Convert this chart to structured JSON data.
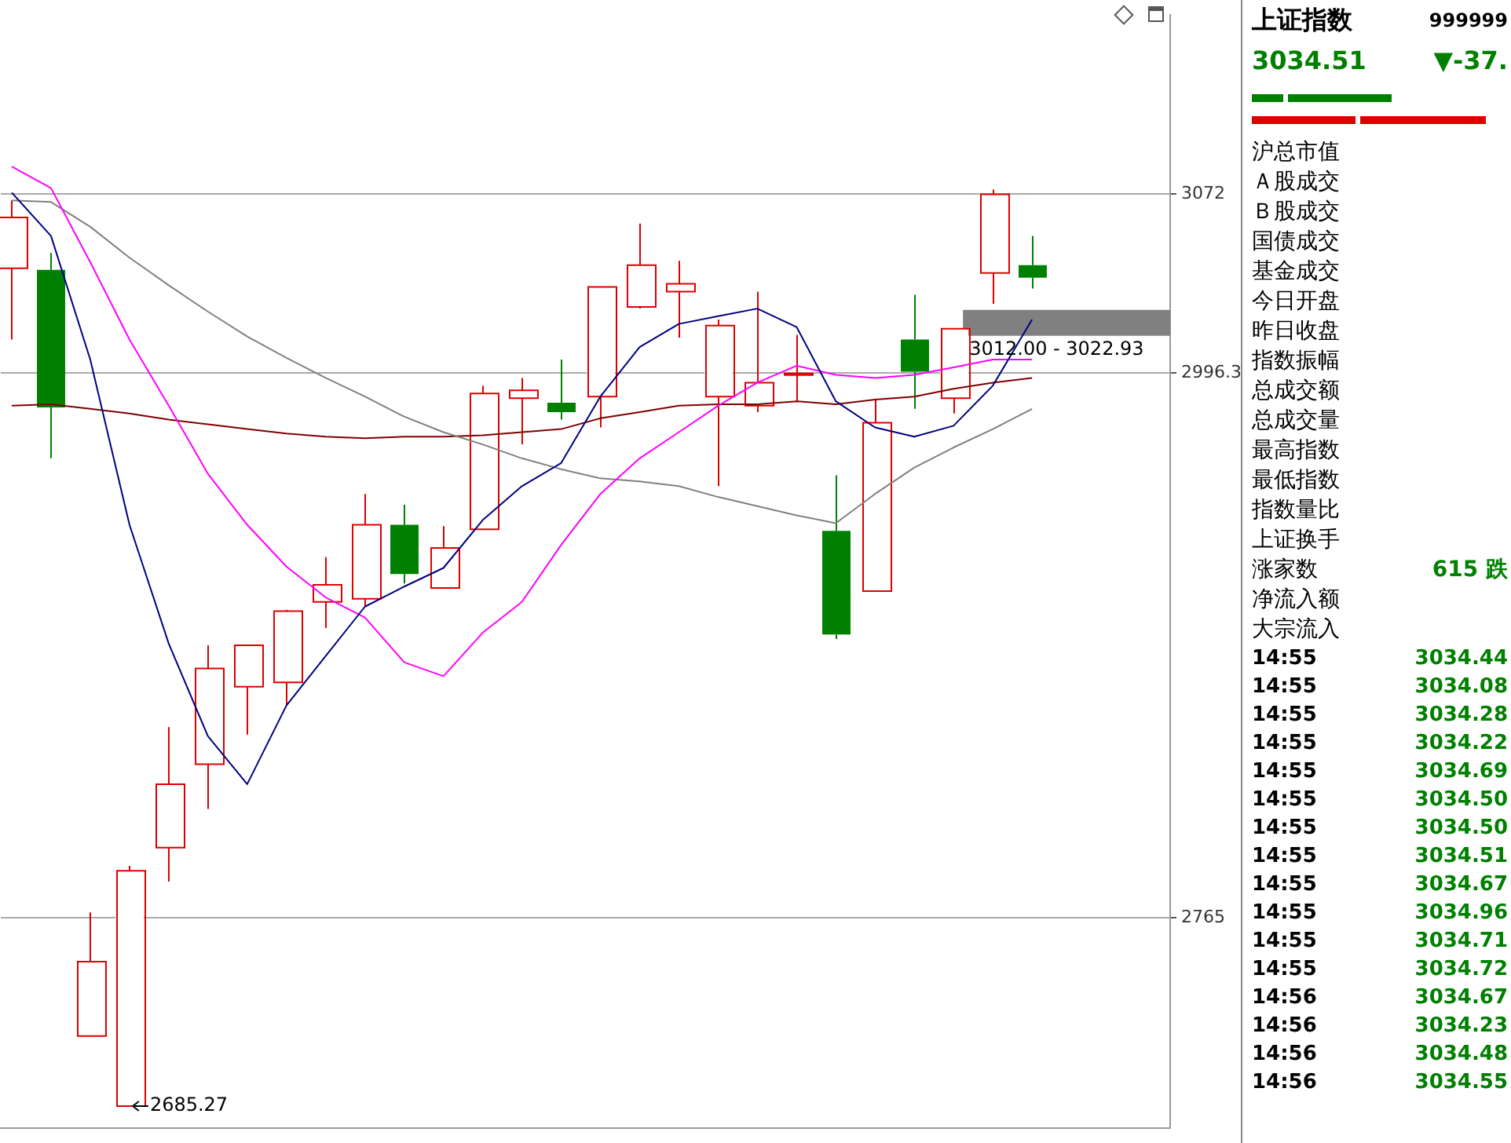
{
  "chart_data": {
    "type": "candlestick",
    "categories": [
      null,
      null,
      null,
      null,
      null,
      null,
      null,
      null,
      null,
      null,
      null,
      null,
      null,
      null,
      null,
      null,
      null,
      null,
      null,
      null,
      null,
      null,
      null,
      null,
      null,
      null,
      null
    ],
    "ohlc": [
      [
        3040.6,
        3069.4,
        3010.4,
        3062.2
      ],
      [
        3039.9,
        3047.1,
        2960.0,
        2981.6
      ],
      [
        2715.0,
        2767.4,
        2715.0,
        2746.5
      ],
      [
        2685.27,
        2787.1,
        2685.27,
        2785.1
      ],
      [
        2794.9,
        2846.0,
        2780.5,
        2821.8
      ],
      [
        2830.3,
        2880.7,
        2811.3,
        2870.9
      ],
      [
        2863.1,
        2880.7,
        2842.8,
        2880.7
      ],
      [
        2865.0,
        2895.8,
        2855.2,
        2895.2
      ],
      [
        2899.1,
        2918.1,
        2888.0,
        2906.3
      ],
      [
        2900.4,
        2944.9,
        2897.1,
        2931.8
      ],
      [
        2931.8,
        2940.3,
        2906.9,
        2910.9
      ],
      [
        2905.0,
        2931.2,
        2905.0,
        2922.0
      ],
      [
        2929.9,
        2990.8,
        2929.9,
        2987.5
      ],
      [
        2985.5,
        2994.1,
        2965.9,
        2988.8
      ],
      [
        2983.6,
        3001.9,
        2976.4,
        2979.6
      ],
      [
        2986.2,
        3032.7,
        2973.1,
        3032.7
      ],
      [
        3024.2,
        3059.6,
        3023.5,
        3041.9
      ],
      [
        3030.7,
        3043.8,
        3011.1,
        3034.0
      ],
      [
        2986.2,
        3018.9,
        2948.2,
        3016.3
      ],
      [
        2982.3,
        3030.7,
        2979.6,
        2992.1
      ],
      [
        2996.0,
        3012.4,
        2984.2,
        2996.0
      ],
      [
        2929.2,
        2952.8,
        2883.4,
        2885.3
      ],
      [
        2903.7,
        2984.9,
        2903.7,
        2975.1
      ],
      [
        3010.4,
        3029.4,
        2981.0,
        2996.7
      ],
      [
        2985.5,
        3015.0,
        2979.0,
        3015.0
      ],
      [
        3038.6,
        3074.0,
        3025.5,
        3072.0
      ],
      [
        3041.9,
        3054.3,
        3032.0,
        3036.6
      ]
    ],
    "series": [
      {
        "type": "line",
        "color": "#000080",
        "values": [
          3072.7,
          3054.3,
          3001.9,
          2931.8,
          2881.4,
          2842.1,
          2821.8,
          2855.2,
          2876.2,
          2897.1,
          2905.6,
          2913.5,
          2933.8,
          2948.2,
          2958.0,
          2986.2,
          3007.2,
          3017.0,
          3020.3,
          3023.5,
          3015.7,
          2984.2,
          2973.1,
          2969.2,
          2973.8,
          2990.8,
          3018.9
        ]
      },
      {
        "type": "line",
        "color": "#ff00ff",
        "values": [
          3083.8,
          3074.6,
          3043.2,
          3010.4,
          2982.3,
          2953.4,
          2931.8,
          2914.1,
          2901.0,
          2892.5,
          2873.5,
          2867.6,
          2886.0,
          2899.1,
          2923.3,
          2944.9,
          2960.0,
          2971.1,
          2982.3,
          2992.1,
          2999.3,
          2995.4,
          2994.1,
          2995.4,
          2998.6,
          3001.9,
          3001.9
        ]
      },
      {
        "type": "line",
        "color": "#808080",
        "values": [
          3069.4,
          3068.7,
          3058.2,
          3045.1,
          3033.4,
          3022.2,
          3011.7,
          3002.6,
          2994.1,
          2986.2,
          2977.7,
          2971.1,
          2965.9,
          2960.0,
          2955.4,
          2951.5,
          2950.2,
          2948.2,
          2943.6,
          2939.7,
          2935.8,
          2932.5,
          2944.9,
          2956.1,
          2964.6,
          2972.4,
          2981.0
        ]
      },
      {
        "type": "line",
        "color": "#800000",
        "values": [
          2982.3,
          2982.9,
          2981.0,
          2979.0,
          2976.4,
          2974.4,
          2972.4,
          2970.5,
          2969.2,
          2968.5,
          2969.2,
          2969.2,
          2969.8,
          2971.1,
          2972.4,
          2977.0,
          2979.6,
          2982.3,
          2982.9,
          2982.9,
          2984.2,
          2982.9,
          2984.9,
          2986.2,
          2989.5,
          2992.1,
          2994.1
        ]
      }
    ],
    "ylim": [
      2676,
      3148
    ],
    "yticks": [
      2765,
      {
        "value": 2996.3,
        "label": "2996.3"
      },
      3072
    ],
    "grid": "y",
    "tick_labels": "y",
    "legend": false,
    "bands": [
      {
        "axis": "y",
        "from": 3012,
        "to": 3022.93,
        "label": "3012.00 - 3022.93",
        "color": "#808080"
      }
    ],
    "annotations": [
      "上证指数 999999",
      "3034.51 ▼-37.",
      "沪总市值",
      "Ａ股成交",
      "Ｂ股成交",
      "国债成交",
      "基金成交",
      "今日开盘",
      "昨日收盘",
      "指数振幅",
      "总成交额",
      "总成交量",
      "最高指数",
      "最低指数",
      "指数量比",
      "上证换手",
      "涨家数 615 跌",
      "净流入额",
      "大宗流入",
      "14:55 3034.44",
      "14:55 3034.08",
      "14:55 3034.28",
      "14:55 3034.22",
      "14:55 3034.69",
      "14:55 3034.50",
      "14:55 3034.50",
      "14:55 3034.51",
      "14:55 3034.67",
      "14:55 3034.96",
      "14:55 3034.71",
      "14:55 3034.72",
      "14:56 3034.67",
      "14:56 3034.23",
      "14:56 3034.48",
      "14:56 3034.55",
      "2685.27"
    ]
  }
}
